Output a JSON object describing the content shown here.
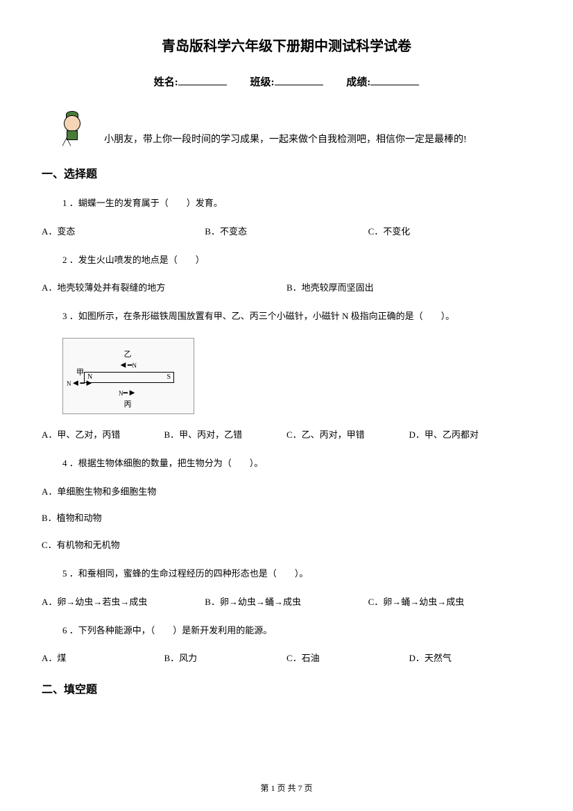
{
  "title": "青岛版科学六年级下册期中测试科学试卷",
  "info": {
    "name_label": "姓名:",
    "class_label": "班级:",
    "score_label": "成绩:"
  },
  "intro": "小朋友，带上你一段时间的学习成果，一起来做个自我检测吧，相信你一定是最棒的!",
  "section1_heading": "一、选择题",
  "section2_heading": "二、填空题",
  "q1": {
    "text": "1 ．蝴蝶一生的发育属于（　　）发育。",
    "a": "A．变态",
    "b": "B．不变态",
    "c": "C．不变化"
  },
  "q2": {
    "text": "2 ．发生火山喷发的地点是（　　）",
    "a": "A．地壳较薄处并有裂缝的地方",
    "b": "B．地壳较厚而坚固出"
  },
  "q3": {
    "text": "3 ．如图所示，在条形磁铁周围放置有甲、乙、丙三个小磁针，小磁针 N 极指向正确的是（　　）。",
    "a": "A．甲、乙对，丙错",
    "b": "B．甲、丙对，乙错",
    "c": "C．乙、丙对，甲错",
    "d": "D．甲、乙丙都对",
    "diagram": {
      "label_top": "乙",
      "label_left": "甲",
      "label_bottom": "丙",
      "n_label": "N",
      "s_label": "S"
    }
  },
  "q4": {
    "text": "4 ．根据生物体细胞的数量，把生物分为（　　）。",
    "a": "A．单细胞生物和多细胞生物",
    "b": "B．植物和动物",
    "c": "C．有机物和无机物"
  },
  "q5": {
    "text": "5 ．和蚕相同，蜜蜂的生命过程经历的四种形态也是（　　）。",
    "a": "A．卵→幼虫→若虫→成虫",
    "b": "B．卵→幼虫→蛹→成虫",
    "c": "C．卵→蛹→幼虫→成虫"
  },
  "q6": {
    "text": "6 ．下列各种能源中，（　　）是新开发利用的能源。",
    "a": "A．煤",
    "b": "B．风力",
    "c": "C．石油",
    "d": "D．天然气"
  },
  "footer": "第 1 页 共 7 页"
}
